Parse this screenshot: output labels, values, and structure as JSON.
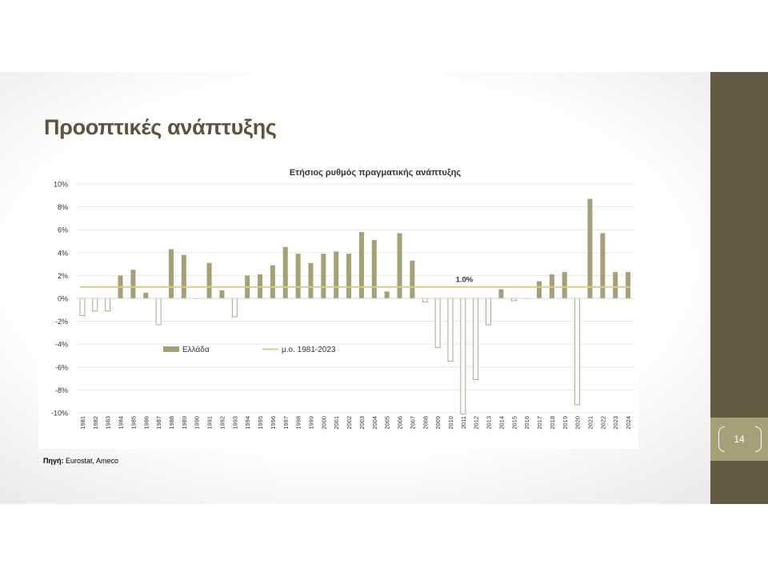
{
  "slide": {
    "title": "Προοπτικές ανάπτυξης",
    "page_number": "14",
    "source_label": "Πηγή:",
    "source_text": "Eurostat, Ameco"
  },
  "colors": {
    "sidebar": "#655a44",
    "page_box": "#a79f78",
    "bar_fill": "#a79f78",
    "avg_line": "#d6d08a",
    "title": "#5e533c"
  },
  "chart_data": {
    "type": "bar",
    "title": "Ετήσιος ρυθμός πραγματικής ανάπτυξης",
    "categories": [
      "1981",
      "1982",
      "1983",
      "1984",
      "1985",
      "1986",
      "1987",
      "1988",
      "1989",
      "1990",
      "1991",
      "1992",
      "1993",
      "1994",
      "1995",
      "1996",
      "1997",
      "1998",
      "1999",
      "2000",
      "2001",
      "2002",
      "2003",
      "2004",
      "2005",
      "2006",
      "2007",
      "2008",
      "2009",
      "2010",
      "2011",
      "2012",
      "2013",
      "2014",
      "2015",
      "2016",
      "2017",
      "2018",
      "2019",
      "2020",
      "2021",
      "2022",
      "2023",
      "2024"
    ],
    "series": [
      {
        "name": "Ελλάδα",
        "values": [
          -1.5,
          -1.1,
          -1.1,
          2.0,
          2.5,
          0.5,
          -2.3,
          4.3,
          3.8,
          0.0,
          3.1,
          0.7,
          -1.6,
          2.0,
          2.1,
          2.9,
          4.5,
          3.9,
          3.1,
          3.9,
          4.1,
          3.9,
          5.8,
          5.1,
          0.6,
          5.7,
          3.3,
          -0.3,
          -4.3,
          -5.5,
          -10.1,
          -7.1,
          -2.3,
          0.8,
          -0.2,
          -0.0,
          1.5,
          2.1,
          2.3,
          -9.3,
          8.7,
          5.7,
          2.3,
          2.3
        ]
      },
      {
        "name": "μ.ο. 1981-2023",
        "type": "line",
        "value": 1.0
      }
    ],
    "avg_label": "1.0%",
    "ylim": [
      -10,
      10
    ],
    "yticks": [
      "-10%",
      "-8%",
      "-6%",
      "-4%",
      "-2%",
      "0%",
      "2%",
      "4%",
      "6%",
      "8%",
      "10%"
    ],
    "ytick_values": [
      -10,
      -8,
      -6,
      -4,
      -2,
      0,
      2,
      4,
      6,
      8,
      10
    ],
    "negative_bars": "outlined",
    "grid": true,
    "legend": "center-left"
  }
}
